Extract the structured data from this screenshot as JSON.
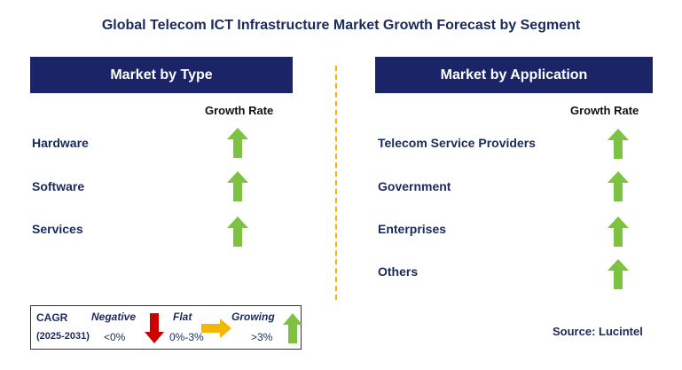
{
  "title": "Global Telecom ICT Infrastructure Market Growth Forecast by Segment",
  "left_panel": {
    "header": "Market by Type",
    "growth_label": "Growth Rate",
    "items": [
      {
        "label": "Hardware",
        "trend": "growing"
      },
      {
        "label": "Software",
        "trend": "growing"
      },
      {
        "label": "Services",
        "trend": "growing"
      }
    ]
  },
  "right_panel": {
    "header": "Market by Application",
    "growth_label": "Growth Rate",
    "items": [
      {
        "label": "Telecom Service Providers",
        "trend": "growing"
      },
      {
        "label": "Government",
        "trend": "growing"
      },
      {
        "label": "Enterprises",
        "trend": "growing"
      },
      {
        "label": "Others",
        "trend": "growing"
      }
    ]
  },
  "legend": {
    "cagr": "CAGR",
    "period": "(2025-2031)",
    "negative": {
      "label": "Negative",
      "range": "<0%",
      "color": "#cc0000",
      "icon": "down-arrow-icon"
    },
    "flat": {
      "label": "Flat",
      "range": "0%-3%",
      "color": "#f5b800",
      "icon": "right-arrow-icon"
    },
    "growing": {
      "label": "Growing",
      "range": ">3%",
      "color": "#7dc242",
      "icon": "up-arrow-icon"
    }
  },
  "source": "Source: Lucintel",
  "colors": {
    "header_bg": "#1a2466",
    "title_text": "#1a2a5e",
    "growing_arrow": "#7dc242",
    "divider": "#f0b400"
  }
}
